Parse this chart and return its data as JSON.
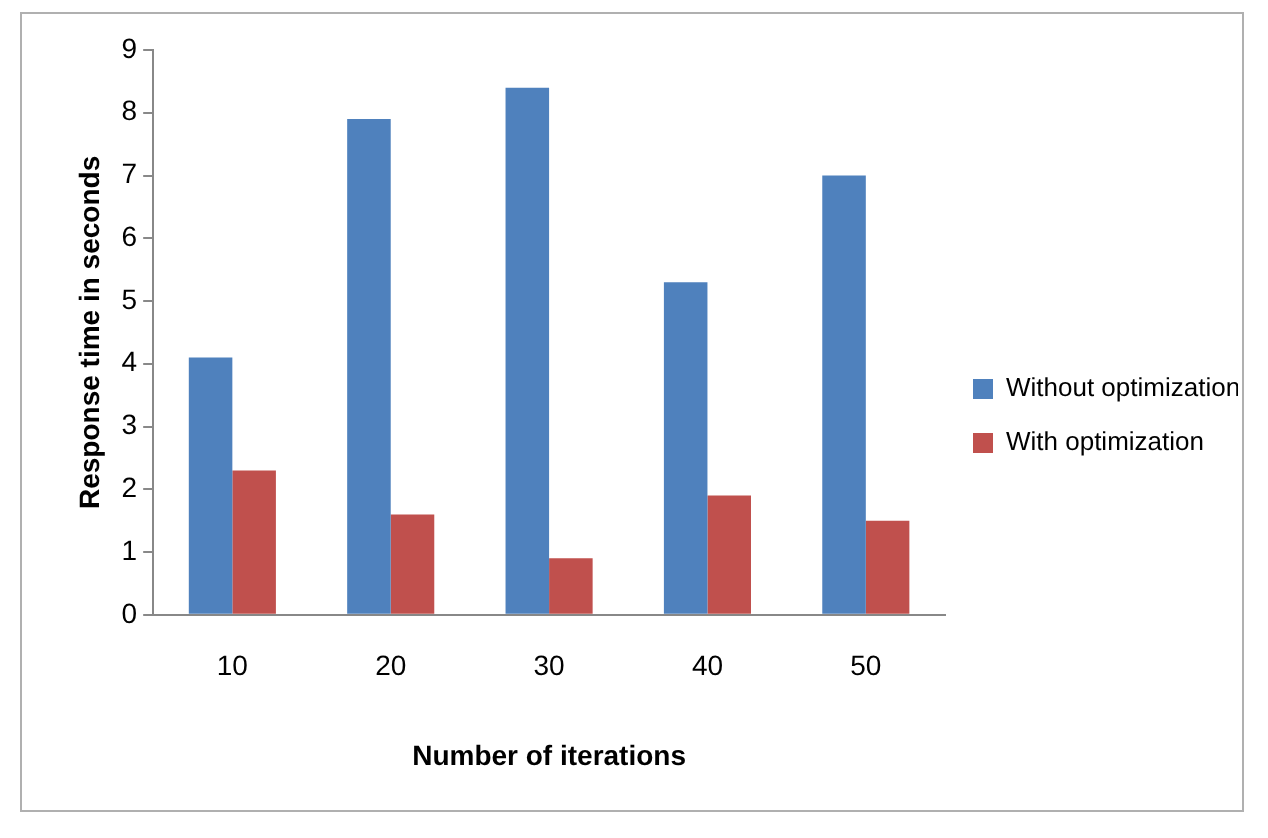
{
  "chart_data": {
    "type": "bar",
    "xlabel": "Number of iterations",
    "ylabel": "Response time in seconds",
    "categories": [
      "10",
      "20",
      "30",
      "40",
      "50"
    ],
    "series": [
      {
        "name": "Without optimization",
        "color": "#4f81bd",
        "values": [
          4.1,
          7.9,
          8.4,
          5.3,
          7.0
        ]
      },
      {
        "name": "With optimization",
        "color": "#c0504d",
        "values": [
          2.3,
          1.6,
          0.9,
          1.9,
          1.5
        ]
      }
    ],
    "ylim": [
      0,
      9
    ],
    "yticks": [
      0,
      1,
      2,
      3,
      4,
      5,
      6,
      7,
      8,
      9
    ],
    "grid": false,
    "legend": "right"
  }
}
